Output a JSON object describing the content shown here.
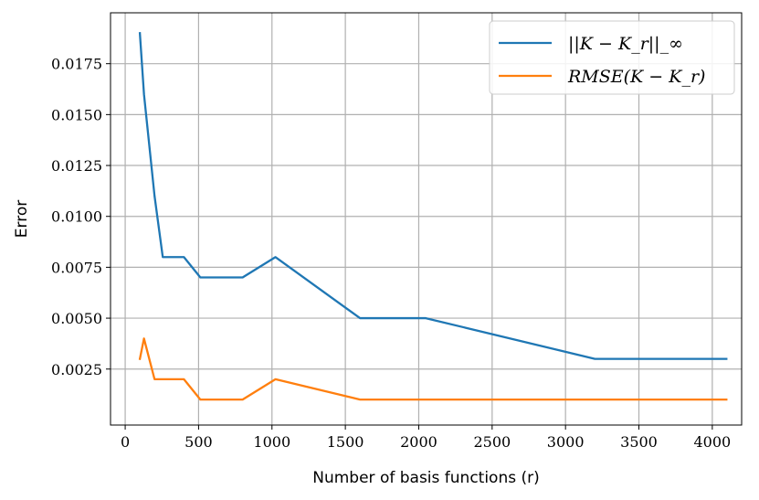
{
  "chart_data": {
    "type": "line",
    "xlabel": "Number of basis functions (r)",
    "ylabel": "Error",
    "xlim": [
      -100,
      4200
    ],
    "ylim": [
      -0.00025,
      0.02
    ],
    "x_ticks": [
      0,
      500,
      1000,
      1500,
      2000,
      2500,
      3000,
      3500,
      4000
    ],
    "x_tick_labels": [
      "0",
      "500",
      "1000",
      "1500",
      "2000",
      "2500",
      "3000",
      "3500",
      "4000"
    ],
    "y_ticks": [
      0.0025,
      0.005,
      0.0075,
      0.01,
      0.0125,
      0.015,
      0.0175
    ],
    "y_tick_labels": [
      "0.0025",
      "0.0050",
      "0.0075",
      "0.0100",
      "0.0125",
      "0.0150",
      "0.0175"
    ],
    "grid": true,
    "legend_position": "top-right",
    "series": [
      {
        "name": "||K − K_r||_∞",
        "color": "#1f77b4",
        "x": [
          100,
          128,
          200,
          256,
          400,
          512,
          800,
          1024,
          1600,
          2048,
          3200,
          4096
        ],
        "y": [
          0.019,
          0.016,
          0.011,
          0.008,
          0.008,
          0.007,
          0.007,
          0.008,
          0.005,
          0.005,
          0.003,
          0.003
        ]
      },
      {
        "name": "RMSE(K − K_r)",
        "color": "#ff7f0e",
        "x": [
          100,
          128,
          200,
          256,
          400,
          512,
          800,
          1024,
          1600,
          2048,
          3200,
          4096
        ],
        "y": [
          0.003,
          0.004,
          0.002,
          0.002,
          0.002,
          0.001,
          0.001,
          0.002,
          0.001,
          0.001,
          0.001,
          0.001
        ]
      }
    ]
  }
}
